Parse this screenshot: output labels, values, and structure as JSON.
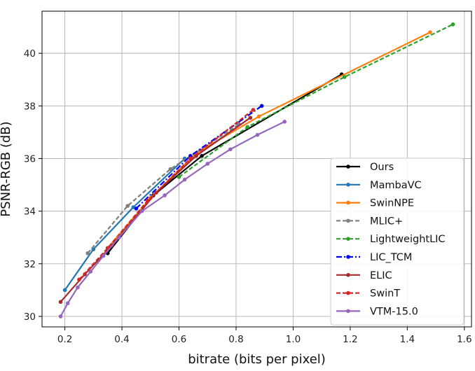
{
  "chart_data": {
    "type": "line",
    "title": "",
    "xlabel": "bitrate (bits per pixel)",
    "ylabel": "PSNR-RGB (dB)",
    "xlim": [
      0.12,
      1.625
    ],
    "ylim": [
      29.6,
      41.6
    ],
    "xticks": [
      "0.2",
      "0.4",
      "0.6",
      "0.8",
      "1.0",
      "1.2",
      "1.4",
      "1.6"
    ],
    "yticks": [
      "30",
      "32",
      "34",
      "36",
      "38",
      "40"
    ],
    "grid": true,
    "legend_position": "lower-right",
    "series": [
      {
        "name": "Ours",
        "color": "#000000",
        "dash": "solid",
        "x": [
          0.35,
          0.51,
          0.68,
          1.17
        ],
        "y": [
          32.4,
          34.6,
          36.1,
          39.2
        ]
      },
      {
        "name": "MambaVC",
        "color": "#1f77b4",
        "dash": "solid",
        "x": [
          0.2,
          0.3,
          0.44,
          0.62
        ],
        "y": [
          31.0,
          32.55,
          34.15,
          36.0
        ]
      },
      {
        "name": "SwinNPE",
        "color": "#ff7f0e",
        "dash": "solid",
        "x": [
          0.35,
          0.5,
          0.66,
          0.88,
          1.48
        ],
        "y": [
          32.6,
          34.5,
          36.2,
          37.6,
          40.8
        ]
      },
      {
        "name": "MLIC+",
        "color": "#808080",
        "dash": "dashed",
        "x": [
          0.28,
          0.42,
          0.57,
          0.81
        ],
        "y": [
          32.4,
          34.2,
          35.6,
          37.3
        ]
      },
      {
        "name": "LightweightLIC",
        "color": "#2ca02c",
        "dash": "dashed",
        "x": [
          0.6,
          0.84,
          1.18,
          1.56
        ],
        "y": [
          35.3,
          37.2,
          39.1,
          41.1
        ]
      },
      {
        "name": "LIC_TCM",
        "color": "#0000ff",
        "dash": "dashdot",
        "x": [
          0.45,
          0.64,
          0.89
        ],
        "y": [
          34.1,
          36.1,
          38.0
        ]
      },
      {
        "name": "ELIC",
        "color": "#a52a2a",
        "dash": "solid",
        "x": [
          0.185,
          0.27,
          0.365,
          0.52,
          0.66,
          0.85
        ],
        "y": [
          30.55,
          31.6,
          32.7,
          34.7,
          36.1,
          37.55
        ]
      },
      {
        "name": "SwinT",
        "color": "#d62728",
        "dash": "dashed",
        "x": [
          0.25,
          0.35,
          0.49,
          0.64,
          0.86
        ],
        "y": [
          31.4,
          32.6,
          34.4,
          36.0,
          37.85
        ]
      },
      {
        "name": "VTM-15.0",
        "color": "#9467bd",
        "dash": "solid",
        "x": [
          0.185,
          0.21,
          0.245,
          0.29,
          0.335,
          0.39,
          0.47,
          0.55,
          0.62,
          0.7,
          0.78,
          0.875,
          0.97
        ],
        "y": [
          30.0,
          30.5,
          31.1,
          31.7,
          32.3,
          33.0,
          34.0,
          34.6,
          35.2,
          35.8,
          36.35,
          36.9,
          37.4
        ]
      }
    ]
  }
}
